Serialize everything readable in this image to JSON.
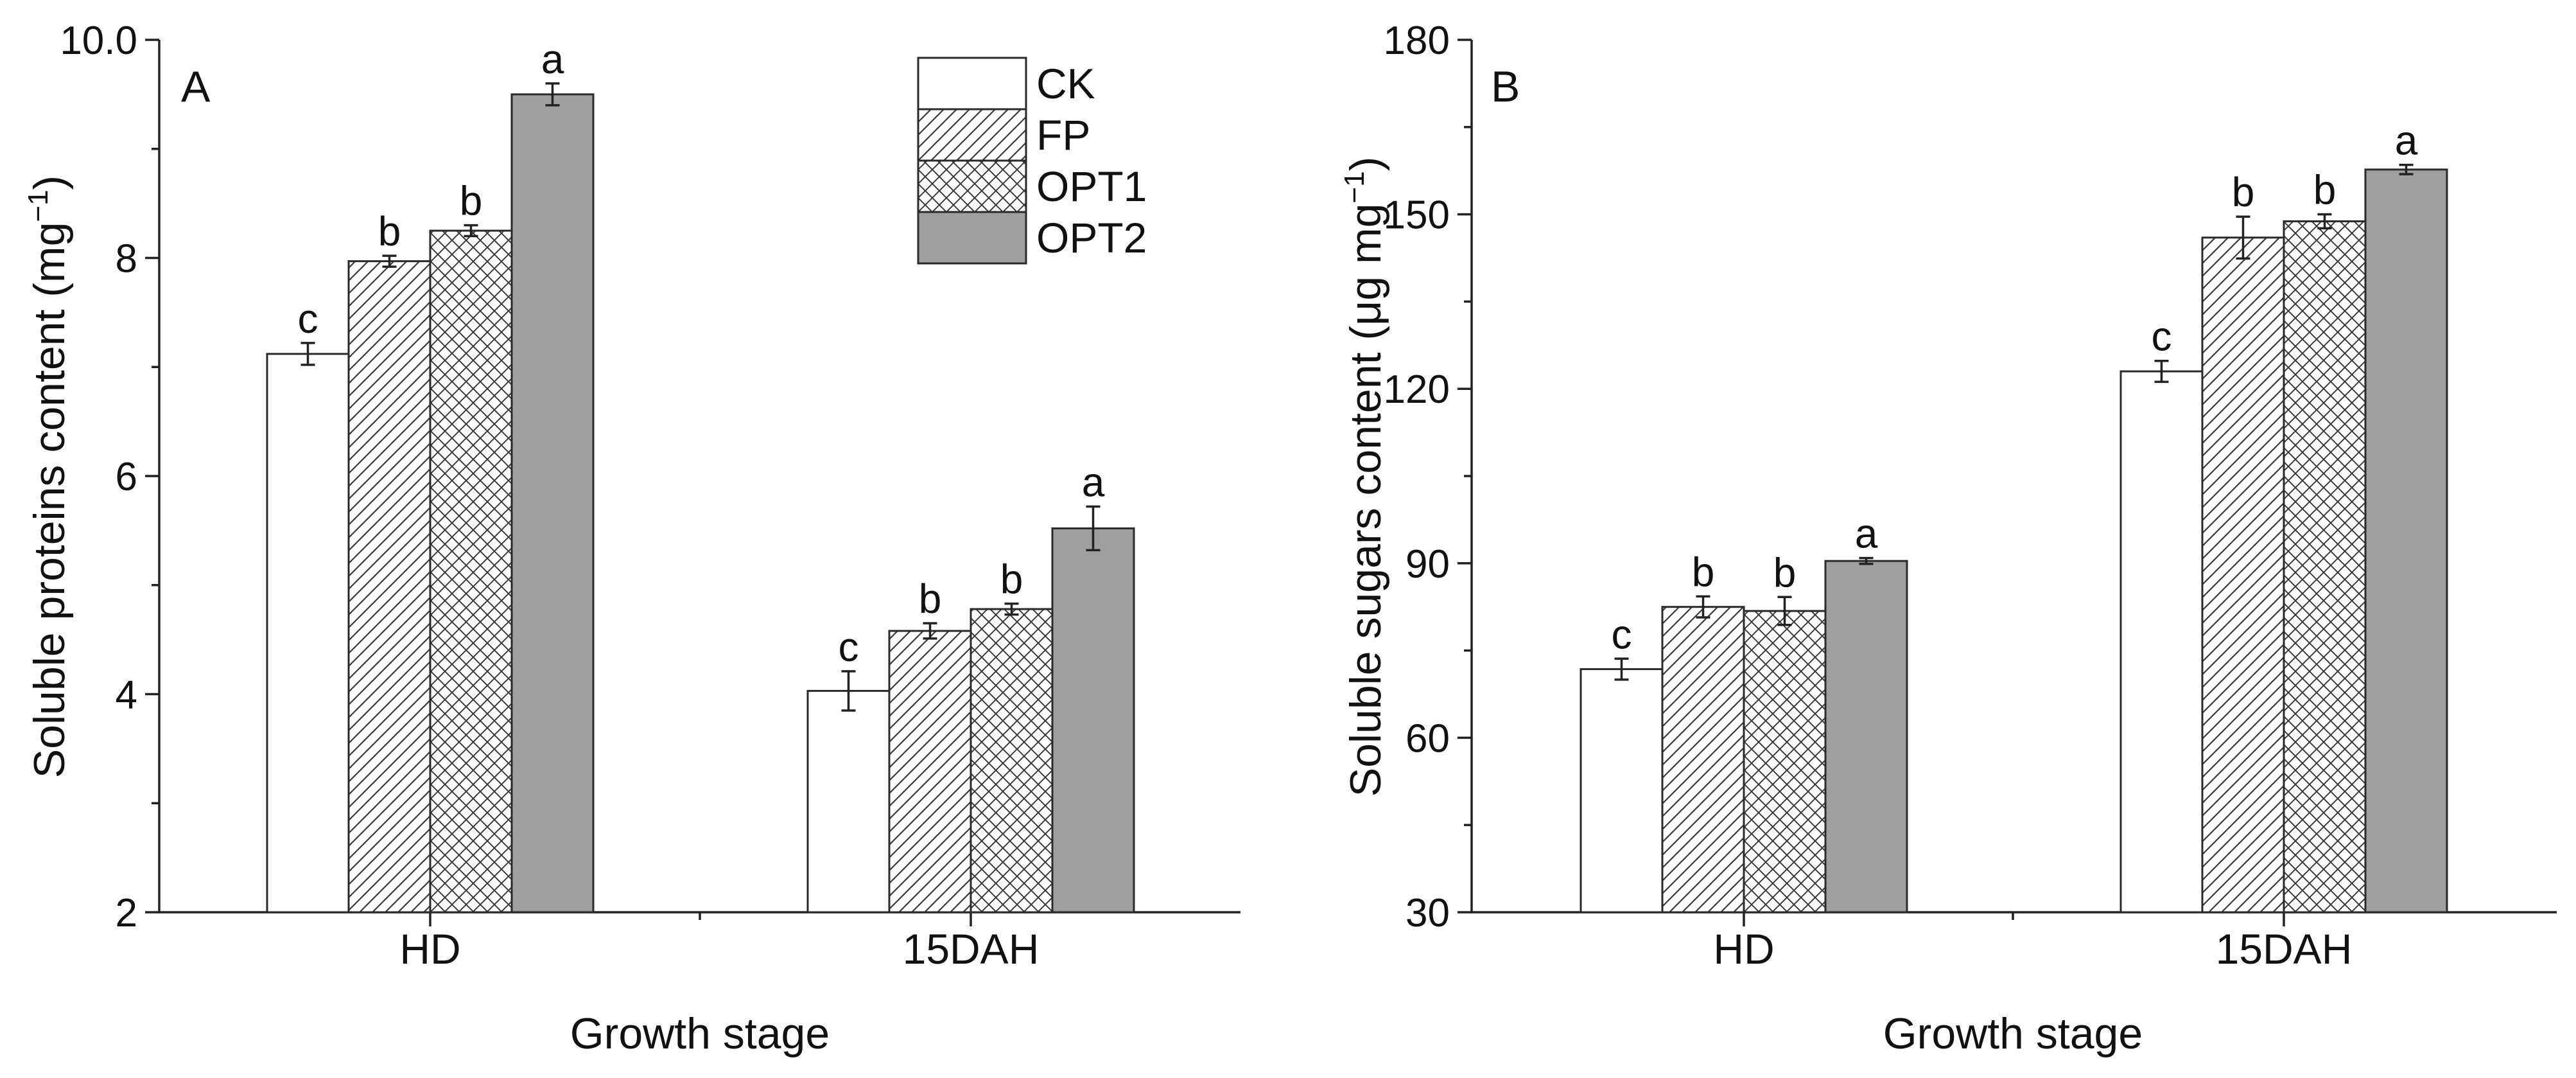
{
  "figure": {
    "colors": {
      "CK": "#ffffff",
      "FP": "#ffffff",
      "OPT1": "#ffffff",
      "OPT2": "#9f9f9f",
      "stroke": "#2a2a2a",
      "hatch": "#3a3a3a"
    }
  },
  "legend": {
    "entries": [
      {
        "name": "CK",
        "pattern": "none"
      },
      {
        "name": "FP",
        "pattern": "diagonal"
      },
      {
        "name": "OPT1",
        "pattern": "crosshatch"
      },
      {
        "name": "OPT2",
        "pattern": "solid-gray"
      }
    ]
  },
  "chart_data": [
    {
      "type": "bar",
      "panel": "A",
      "title": "",
      "xlabel": "Growth stage",
      "ylabel": "Soluble proteins content (mg",
      "ylabel_superscript": "−1",
      "ylabel_close": ")",
      "categories": [
        "HD",
        "15DAH"
      ],
      "ylim": [
        2,
        10
      ],
      "yticks": [
        2,
        4,
        6,
        8,
        10
      ],
      "ytick_labels": [
        "2",
        "4",
        "6",
        "8",
        "10.0"
      ],
      "series": [
        {
          "name": "CK",
          "values": [
            7.12,
            4.03
          ],
          "errors": [
            0.1,
            0.18
          ],
          "letters": [
            "c",
            "c"
          ]
        },
        {
          "name": "FP",
          "values": [
            7.97,
            4.58
          ],
          "errors": [
            0.05,
            0.07
          ],
          "letters": [
            "b",
            "b"
          ]
        },
        {
          "name": "OPT1",
          "values": [
            8.25,
            4.78
          ],
          "errors": [
            0.05,
            0.05
          ],
          "letters": [
            "b",
            "b"
          ]
        },
        {
          "name": "OPT2",
          "values": [
            9.5,
            5.52
          ],
          "errors": [
            0.1,
            0.2
          ],
          "letters": [
            "a",
            "a"
          ]
        }
      ]
    },
    {
      "type": "bar",
      "panel": "B",
      "title": "",
      "xlabel": "Growth stage",
      "ylabel": "Soluble sugars content (μg mg",
      "ylabel_superscript": "−1",
      "ylabel_close": ")",
      "categories": [
        "HD",
        "15DAH"
      ],
      "ylim": [
        30,
        180
      ],
      "yticks": [
        30,
        60,
        90,
        120,
        150,
        180
      ],
      "ytick_labels": [
        "30",
        "60",
        "90",
        "120",
        "150",
        "180"
      ],
      "series": [
        {
          "name": "CK",
          "values": [
            71.8,
            123.0
          ],
          "errors": [
            1.8,
            1.8
          ],
          "letters": [
            "c",
            "c"
          ]
        },
        {
          "name": "FP",
          "values": [
            82.5,
            146.0
          ],
          "errors": [
            1.8,
            3.6
          ],
          "letters": [
            "b",
            "b"
          ]
        },
        {
          "name": "OPT1",
          "values": [
            81.8,
            148.8
          ],
          "errors": [
            2.4,
            1.2
          ],
          "letters": [
            "b",
            "b"
          ]
        },
        {
          "name": "OPT2",
          "values": [
            90.4,
            157.7
          ],
          "errors": [
            0.5,
            0.8
          ],
          "letters": [
            "a",
            "a"
          ]
        }
      ]
    }
  ]
}
